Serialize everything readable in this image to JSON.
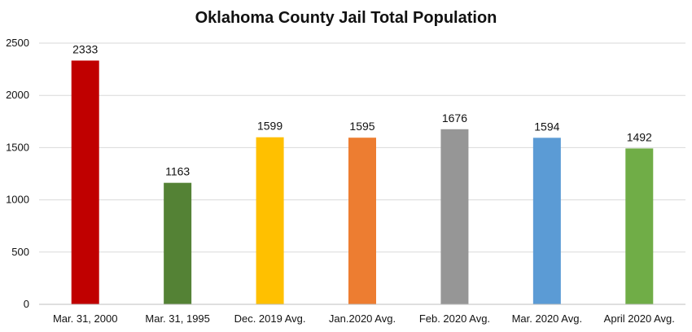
{
  "chart_data": {
    "type": "bar",
    "title": "Oklahoma County Jail Total Population",
    "xlabel": "",
    "ylabel": "",
    "ylim": [
      0,
      2500
    ],
    "yticks": [
      0,
      500,
      1000,
      1500,
      2000,
      2500
    ],
    "grid": true,
    "categories": [
      "Mar. 31, 2000",
      "Mar. 31, 1995",
      "Dec. 2019 Avg.",
      "Jan.2020 Avg.",
      "Feb. 2020 Avg.",
      "Mar. 2020 Avg.",
      "April 2020 Avg."
    ],
    "values": [
      2333,
      1163,
      1599,
      1595,
      1676,
      1594,
      1492
    ],
    "colors": [
      "#c00000",
      "#548235",
      "#ffc000",
      "#ed7d31",
      "#969696",
      "#5b9bd5",
      "#70ad47"
    ]
  }
}
